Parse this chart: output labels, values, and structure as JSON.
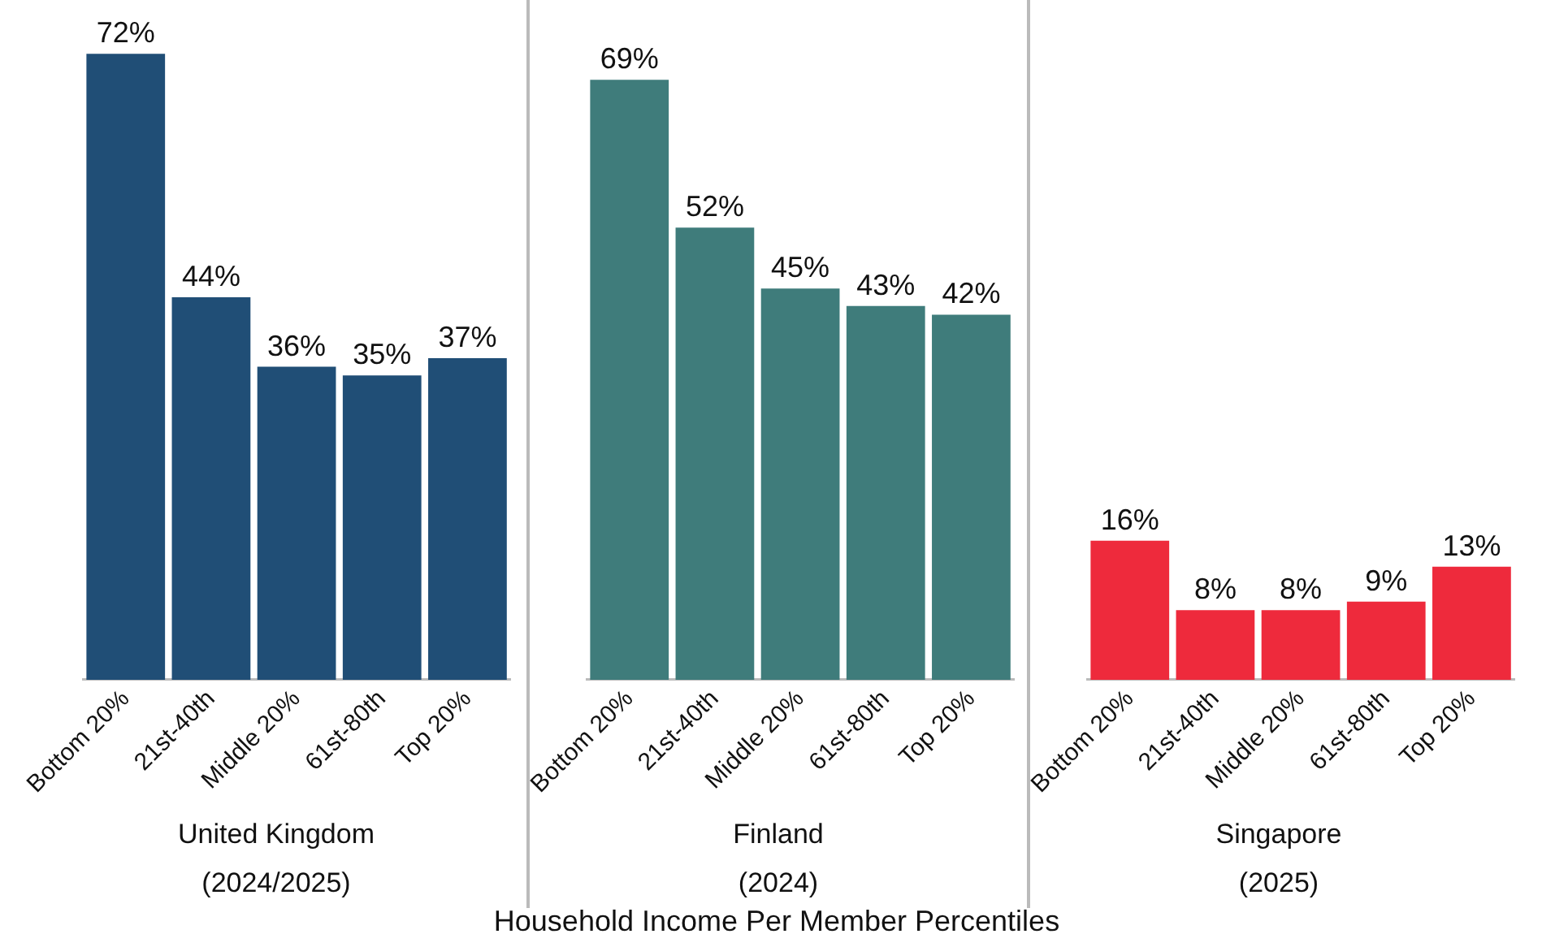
{
  "chart_data": [
    {
      "type": "bar",
      "xlabel": "United Kingdom\n(2024/2025)",
      "categories": [
        "Bottom 20%",
        "21st-40th",
        "Middle 20%",
        "61st-80th",
        "Top 20%"
      ],
      "values": [
        72,
        44,
        36,
        35,
        37
      ],
      "value_labels": [
        "72%",
        "44%",
        "36%",
        "35%",
        "37%"
      ],
      "color": "#204e76",
      "grid": false,
      "legend": false,
      "annotations": [
        "Household Income Per Member Percentiles"
      ]
    },
    {
      "type": "bar",
      "xlabel": "Finland\n(2024)",
      "categories": [
        "Bottom 20%",
        "21st-40th",
        "Middle 20%",
        "61st-80th",
        "Top 20%"
      ],
      "values": [
        69,
        52,
        45,
        43,
        42
      ],
      "value_labels": [
        "69%",
        "52%",
        "45%",
        "43%",
        "42%"
      ],
      "color": "#3f7c7b",
      "grid": false,
      "legend": false
    },
    {
      "type": "bar",
      "xlabel": "Singapore\n(2025)",
      "categories": [
        "Bottom 20%",
        "21st-40th",
        "Middle 20%",
        "61st-80th",
        "Top 20%"
      ],
      "values": [
        16,
        8,
        8,
        9,
        13
      ],
      "value_labels": [
        "16%",
        "8%",
        "8%",
        "9%",
        "13%"
      ],
      "color": "#ee2a3c",
      "grid": false,
      "legend": false
    }
  ]
}
